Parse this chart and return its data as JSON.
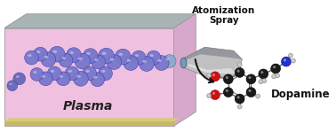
{
  "bg_color": "#ffffff",
  "box": {
    "front_face_color": "#f0c0e0",
    "top_face_color": "#a8b4b4",
    "right_face_color": "#d8a8cc",
    "floor_color": "#c8b860",
    "floor_thin_color": "#d4cc78"
  },
  "text_plasma": "Plasma",
  "text_plasma_color": "#222222",
  "text_plasma_fontsize": 10,
  "text_atomization": "Atomization\nSpray",
  "text_atomization_color": "#111111",
  "text_atomization_fontsize": 7.5,
  "text_dopamine": "Dopamine",
  "text_dopamine_color": "#111111",
  "text_dopamine_fontsize": 8.5,
  "sphere_color_large": "#7878cc",
  "sphere_color_medium": "#6868bb",
  "sphere_color_small": "#4455aa",
  "nozzle_body_color1": "#c0c0c0",
  "nozzle_body_color2": "#888898",
  "nozzle_tip_color": "#7799bb",
  "atom_C": "#1a1a1a",
  "atom_O": "#cc1111",
  "atom_N": "#2233cc",
  "atom_H": "#c8c8c8",
  "bond_color": "#666666",
  "arrow_color": "#111111",
  "spheres": [
    [
      193,
      80,
      7.5,
      "nozzle_tip"
    ],
    [
      184,
      78,
      8.5,
      "large"
    ],
    [
      175,
      84,
      8,
      "large"
    ],
    [
      167,
      77,
      8.5,
      "large"
    ],
    [
      158,
      84,
      8,
      "large"
    ],
    [
      149,
      78,
      8.5,
      "large"
    ],
    [
      140,
      85,
      9,
      "large"
    ],
    [
      130,
      79,
      8.5,
      "large"
    ],
    [
      121,
      86,
      9,
      "large"
    ],
    [
      112,
      79,
      8,
      "large"
    ],
    [
      103,
      86,
      8.5,
      "large"
    ],
    [
      94,
      80,
      9,
      "large"
    ],
    [
      84,
      87,
      8.5,
      "large"
    ],
    [
      75,
      81,
      8,
      "large"
    ],
    [
      65,
      88,
      9,
      "large"
    ],
    [
      55,
      82,
      8.5,
      "large"
    ],
    [
      46,
      88,
      8,
      "large"
    ],
    [
      36,
      84,
      8,
      "large"
    ],
    [
      120,
      66,
      8,
      "large"
    ],
    [
      111,
      59,
      8,
      "large"
    ],
    [
      102,
      66,
      8,
      "large"
    ],
    [
      92,
      60,
      8.5,
      "large"
    ],
    [
      82,
      66,
      8,
      "large"
    ],
    [
      72,
      60,
      8,
      "large"
    ],
    [
      62,
      66,
      8,
      "large"
    ],
    [
      52,
      60,
      8,
      "large"
    ],
    [
      42,
      65,
      7.5,
      "large"
    ],
    [
      22,
      60,
      7,
      "medium"
    ],
    [
      14,
      52,
      6,
      "medium"
    ]
  ]
}
